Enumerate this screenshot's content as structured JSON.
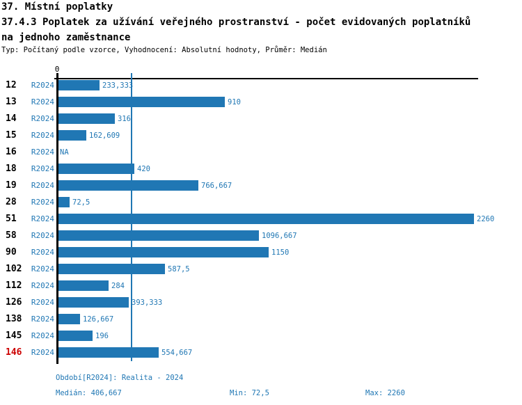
{
  "header": {
    "title": "37. Místní poplatky",
    "subtitle_line1": "37.4.3 Poplatek za užívání veřejného prostranství - počet evidovaných poplatníků",
    "subtitle_line2": "na jednoho zaměstnance",
    "meta": "Typ: Počítaný podle vzorce, Vyhodnocení: Absolutní hodnoty, Průměr: Medián"
  },
  "chart_data": {
    "type": "bar",
    "orientation": "horizontal",
    "series_label": "R2024",
    "zero_label": "0",
    "categories": [
      "12",
      "13",
      "14",
      "15",
      "16",
      "18",
      "19",
      "28",
      "51",
      "58",
      "90",
      "102",
      "112",
      "126",
      "138",
      "145",
      "146"
    ],
    "values": [
      233.333,
      910,
      316,
      162.609,
      null,
      420,
      766.667,
      72.5,
      2260,
      1096.667,
      1150,
      587.5,
      284,
      393.333,
      126.667,
      196,
      554.667
    ],
    "value_labels": [
      "233,333",
      "910",
      "316",
      "162,609",
      "NA",
      "420",
      "766,667",
      "72,5",
      "2260",
      "1096,667",
      "1150",
      "587,5",
      "284",
      "393,333",
      "126,667",
      "196",
      "554,667"
    ],
    "highlighted_categories": [
      "146"
    ],
    "xlim": [
      0,
      2260
    ],
    "median": 406.667,
    "grid": false,
    "legend": "none",
    "bar_color": "#2077b4",
    "axis_color": "#000000",
    "highlight_color": "#cc0000"
  },
  "footer": {
    "period": "Období[R2024]: Realita - 2024",
    "median": "Medián: 406,667",
    "min": "Min: 72,5",
    "max": "Max: 2260"
  }
}
